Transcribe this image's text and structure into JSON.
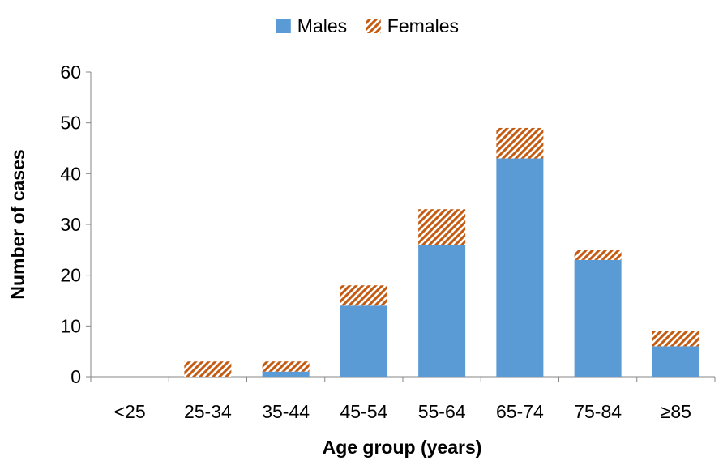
{
  "chart_data": {
    "type": "bar",
    "stacked": true,
    "title": "",
    "xlabel": "Age group (years)",
    "ylabel": "Number of cases",
    "categories": [
      "<25",
      "25-34",
      "35-44",
      "45-54",
      "55-64",
      "65-74",
      "75-84",
      "≥85"
    ],
    "series": [
      {
        "name": "Males",
        "values": [
          0,
          0,
          1,
          14,
          26,
          43,
          23,
          6
        ],
        "color": "#5B9BD5",
        "fill": "solid"
      },
      {
        "name": "Females",
        "values": [
          0,
          3,
          2,
          4,
          7,
          6,
          2,
          3
        ],
        "color": "#C55A11",
        "fill": "diagonal-hatch"
      }
    ],
    "ylim": [
      0,
      60
    ],
    "yticks": [
      0,
      10,
      20,
      30,
      40,
      50,
      60
    ],
    "grid": false,
    "legend_position": "top-center"
  }
}
